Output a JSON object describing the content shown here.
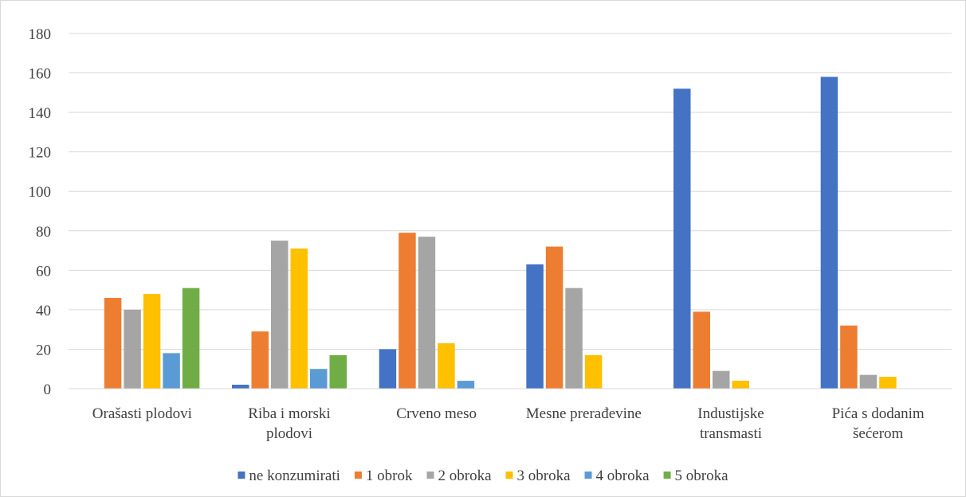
{
  "chart_data": {
    "type": "bar",
    "title": "",
    "xlabel": "",
    "ylabel": "",
    "ylim": [
      0,
      180
    ],
    "yticks": [
      0,
      20,
      40,
      60,
      80,
      100,
      120,
      140,
      160,
      180
    ],
    "grid": true,
    "legend_position": "bottom",
    "categories": [
      [
        "Orašasti plodovi"
      ],
      [
        "Riba i morski",
        "plodovi"
      ],
      [
        "Crveno meso"
      ],
      [
        "Mesne prerađevine"
      ],
      [
        "Industijske",
        "transmasti"
      ],
      [
        "Pića s dodanim",
        "šećerom"
      ]
    ],
    "series": [
      {
        "name": "ne konzumirati",
        "color": "#4472C4",
        "values": [
          0,
          2,
          20,
          63,
          152,
          158
        ]
      },
      {
        "name": "1 obrok",
        "color": "#ED7D31",
        "values": [
          46,
          29,
          79,
          72,
          39,
          32
        ]
      },
      {
        "name": "2 obroka",
        "color": "#A5A5A5",
        "values": [
          40,
          75,
          77,
          51,
          9,
          7
        ]
      },
      {
        "name": "3 obroka",
        "color": "#FFC000",
        "values": [
          48,
          71,
          23,
          17,
          4,
          6
        ]
      },
      {
        "name": "4 obroka",
        "color": "#5B9BD5",
        "values": [
          18,
          10,
          4,
          0,
          0,
          0
        ]
      },
      {
        "name": "5 obroka",
        "color": "#70AD47",
        "values": [
          51,
          17,
          0,
          0,
          0,
          0
        ]
      }
    ]
  }
}
